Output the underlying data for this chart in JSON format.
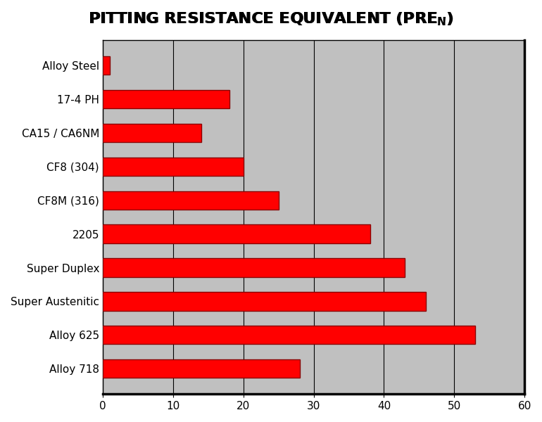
{
  "title": "PITTING RESISTANCE EQUIVALENT (PRE",
  "title_subscript": "N",
  "title_suffix": ")",
  "categories": [
    "Alloy Steel",
    "17-4 PH",
    "CA15 / CA6NM",
    "CF8 (304)",
    "CF8M (316)",
    "2205",
    "Super Duplex",
    "Super Austenitic",
    "Alloy 625",
    "Alloy 718"
  ],
  "values": [
    1,
    18,
    14,
    20,
    25,
    38,
    43,
    46,
    53,
    28
  ],
  "bar_color": "#FF0000",
  "bar_edge_color": "#8B0000",
  "background_color": "#C0C0C0",
  "figure_background": "#FFFFFF",
  "xlim": [
    0,
    60
  ],
  "xticks": [
    0,
    10,
    20,
    30,
    40,
    50,
    60
  ],
  "grid_color": "#000000",
  "bar_height": 0.55,
  "title_fontsize": 16,
  "tick_fontsize": 11,
  "label_fontsize": 11
}
